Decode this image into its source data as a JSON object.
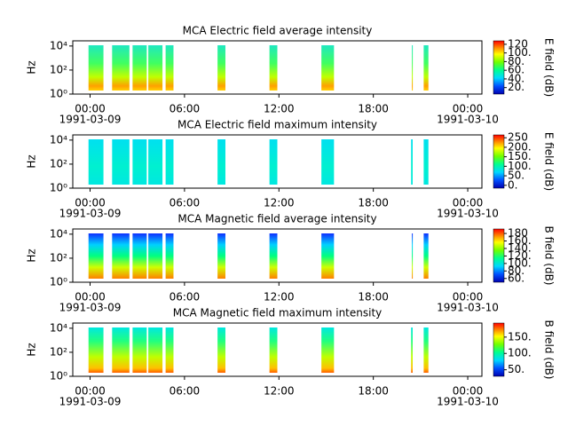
{
  "chart_data": [
    {
      "type": "spectrogram",
      "title": "MCA  Electric field average intensity",
      "ylabel": "Hz",
      "colorbar_label": "E field (dB)",
      "xlim": [
        -1.1,
        24.9
      ],
      "xticks": [
        {
          "value": 0,
          "label": "00:00"
        },
        {
          "value": 6,
          "label": "06:00"
        },
        {
          "value": 12,
          "label": "12:00"
        },
        {
          "value": 18,
          "label": "18:00"
        },
        {
          "value": 24,
          "label": "00:00"
        }
      ],
      "x_date_labels": [
        {
          "value": 0,
          "label": "1991-03-09"
        },
        {
          "value": 24,
          "label": "1991-03-10"
        }
      ],
      "log_y": true,
      "ylim": [
        1,
        27000
      ],
      "yticks": [
        {
          "value": 1,
          "label": "10⁰"
        },
        {
          "value": 100,
          "label": "10²"
        },
        {
          "value": 10000,
          "label": "10⁴"
        }
      ],
      "clim": [
        5,
        128
      ],
      "cticks": [
        {
          "value": 20,
          "label": "20."
        },
        {
          "value": 40,
          "label": "40."
        },
        {
          "value": 60,
          "label": "60."
        },
        {
          "value": 80,
          "label": "80."
        },
        {
          "value": 100,
          "label": "100."
        },
        {
          "value": 120,
          "label": "120"
        }
      ],
      "segments": [
        [
          -0.1,
          0.85
        ],
        [
          1.4,
          2.5
        ],
        [
          2.7,
          3.6
        ],
        [
          3.7,
          4.6
        ],
        [
          4.8,
          5.3
        ],
        [
          8.1,
          8.6
        ],
        [
          11.4,
          11.9
        ],
        [
          14.7,
          15.5
        ],
        [
          20.45,
          20.5
        ],
        [
          21.2,
          21.5
        ]
      ]
    },
    {
      "type": "spectrogram",
      "title": "MCA  Electric field maximum intensity",
      "ylabel": "Hz",
      "colorbar_label": "E field (dB)",
      "xlim": [
        -1.1,
        24.9
      ],
      "xticks": [
        {
          "value": 0,
          "label": "00:00"
        },
        {
          "value": 6,
          "label": "06:00"
        },
        {
          "value": 12,
          "label": "12:00"
        },
        {
          "value": 18,
          "label": "18:00"
        },
        {
          "value": 24,
          "label": "00:00"
        }
      ],
      "x_date_labels": [
        {
          "value": 0,
          "label": "1991-03-09"
        },
        {
          "value": 24,
          "label": "1991-03-10"
        }
      ],
      "log_y": true,
      "ylim": [
        1,
        27000
      ],
      "yticks": [
        {
          "value": 1,
          "label": "10⁰"
        },
        {
          "value": 100,
          "label": "10²"
        },
        {
          "value": 10000,
          "label": "10⁴"
        }
      ],
      "clim": [
        -15,
        265
      ],
      "cticks": [
        {
          "value": 0,
          "label": "0."
        },
        {
          "value": 50,
          "label": "50."
        },
        {
          "value": 100,
          "label": "100."
        },
        {
          "value": 150,
          "label": "150."
        },
        {
          "value": 200,
          "label": "200."
        },
        {
          "value": 250,
          "label": "250"
        }
      ],
      "segments": [
        [
          -0.1,
          0.85
        ],
        [
          1.4,
          2.5
        ],
        [
          2.7,
          3.6
        ],
        [
          3.7,
          4.6
        ],
        [
          4.8,
          5.3
        ],
        [
          8.1,
          8.6
        ],
        [
          11.4,
          11.9
        ],
        [
          14.7,
          15.5
        ],
        [
          20.4,
          20.5
        ],
        [
          21.2,
          21.5
        ]
      ]
    },
    {
      "type": "spectrogram",
      "title": "MCA  Magnetic field average intensity",
      "ylabel": "Hz",
      "colorbar_label": "B field (dB)",
      "xlim": [
        -1.1,
        24.9
      ],
      "xticks": [
        {
          "value": 0,
          "label": "00:00"
        },
        {
          "value": 6,
          "label": "06:00"
        },
        {
          "value": 12,
          "label": "12:00"
        },
        {
          "value": 18,
          "label": "18:00"
        },
        {
          "value": 24,
          "label": "00:00"
        }
      ],
      "x_date_labels": [
        {
          "value": 0,
          "label": "1991-03-09"
        },
        {
          "value": 24,
          "label": "1991-03-10"
        }
      ],
      "log_y": true,
      "ylim": [
        1,
        27000
      ],
      "yticks": [
        {
          "value": 1,
          "label": "10⁰"
        },
        {
          "value": 100,
          "label": "10²"
        },
        {
          "value": 10000,
          "label": "10⁴"
        }
      ],
      "clim": [
        50,
        192
      ],
      "cticks": [
        {
          "value": 60,
          "label": "60."
        },
        {
          "value": 80,
          "label": "80."
        },
        {
          "value": 100,
          "label": "100."
        },
        {
          "value": 120,
          "label": "120."
        },
        {
          "value": 140,
          "label": "140."
        },
        {
          "value": 160,
          "label": "160."
        },
        {
          "value": 180,
          "label": "180"
        }
      ],
      "segments": [
        [
          -0.1,
          0.85
        ],
        [
          1.4,
          2.5
        ],
        [
          2.7,
          3.6
        ],
        [
          3.7,
          4.6
        ],
        [
          4.8,
          5.3
        ],
        [
          8.1,
          8.6
        ],
        [
          11.4,
          11.9
        ],
        [
          14.7,
          15.5
        ],
        [
          20.45,
          20.5
        ],
        [
          21.2,
          21.5
        ]
      ]
    },
    {
      "type": "spectrogram",
      "title": "MCA  Magnetic field maximum intensity",
      "ylabel": "Hz",
      "colorbar_label": "B field (dB)",
      "xlim": [
        -1.1,
        24.9
      ],
      "xticks": [
        {
          "value": 0,
          "label": "00:00"
        },
        {
          "value": 6,
          "label": "06:00"
        },
        {
          "value": 12,
          "label": "12:00"
        },
        {
          "value": 18,
          "label": "18:00"
        },
        {
          "value": 24,
          "label": "00:00"
        }
      ],
      "x_date_labels": [
        {
          "value": 0,
          "label": "1991-03-09"
        },
        {
          "value": 24,
          "label": "1991-03-10"
        }
      ],
      "log_y": true,
      "ylim": [
        1,
        27000
      ],
      "yticks": [
        {
          "value": 1,
          "label": "10⁰"
        },
        {
          "value": 100,
          "label": "10²"
        },
        {
          "value": 10000,
          "label": "10⁴"
        }
      ],
      "clim": [
        30,
        193
      ],
      "cticks": [
        {
          "value": 50,
          "label": "50."
        },
        {
          "value": 100,
          "label": "100."
        },
        {
          "value": 150,
          "label": "150."
        }
      ],
      "segments": [
        [
          -0.1,
          0.85
        ],
        [
          1.4,
          2.5
        ],
        [
          2.7,
          3.6
        ],
        [
          3.7,
          4.6
        ],
        [
          4.8,
          5.3
        ],
        [
          8.1,
          8.6
        ],
        [
          11.4,
          11.9
        ],
        [
          14.7,
          15.5
        ],
        [
          20.4,
          20.5
        ],
        [
          21.2,
          21.5
        ]
      ]
    }
  ]
}
